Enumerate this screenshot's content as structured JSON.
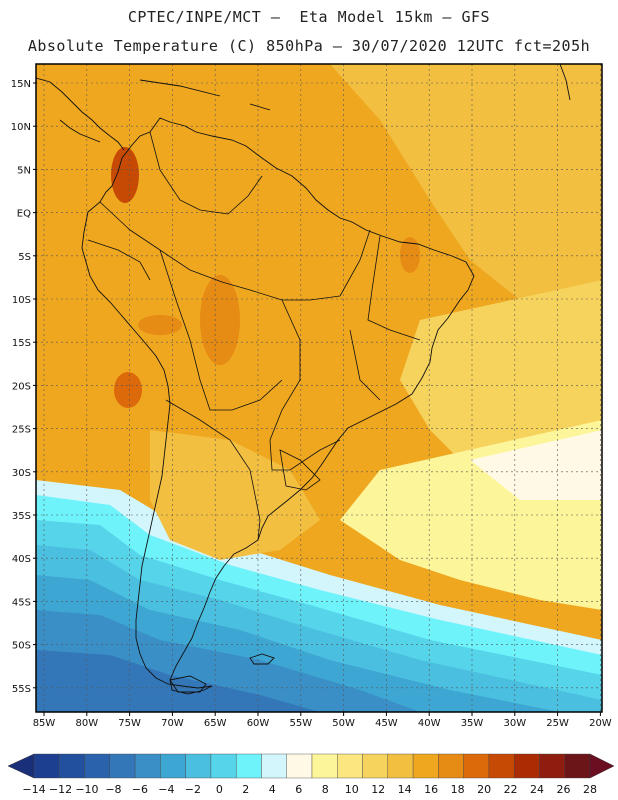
{
  "header": {
    "title_line1": "CPTEC/INPE/MCT –  Eta Model 15km – GFS",
    "title_line2": "Absolute Temperature (C) 850hPa – 30/07/2020 12UTC fct=205h"
  },
  "map": {
    "lat_labels": [
      "15N",
      "10N",
      "5N",
      "EQ",
      "5S",
      "10S",
      "15S",
      "20S",
      "25S",
      "30S",
      "35S",
      "40S",
      "45S",
      "50S",
      "55S"
    ],
    "lon_labels": [
      "85W",
      "80W",
      "75W",
      "70W",
      "65W",
      "60W",
      "55W",
      "50W",
      "45W",
      "40W",
      "35W",
      "30W",
      "25W",
      "20W"
    ],
    "region": "South America"
  },
  "colorbar": {
    "labels": [
      "-14",
      "-12",
      "-10",
      "-8",
      "-6",
      "-4",
      "-2",
      "0",
      "2",
      "4",
      "6",
      "8",
      "10",
      "12",
      "14",
      "16",
      "18",
      "20",
      "22",
      "24",
      "26",
      "28"
    ],
    "colors": [
      "#1d3f8f",
      "#23509e",
      "#2a62ac",
      "#3477b9",
      "#3a8fc6",
      "#3ea6d2",
      "#4bbfe0",
      "#56d4ea",
      "#6ef3fb",
      "#d2f6fb",
      "#fff9e6",
      "#fdf59a",
      "#fbe680",
      "#f6d35c",
      "#f3bf40",
      "#efa720",
      "#e68b14",
      "#dd6a0a",
      "#c74a04",
      "#ab2c02",
      "#8e1d10",
      "#6c1518"
    ],
    "left_arrow_color": "#1a2f7a",
    "right_arrow_color": "#6b0e22"
  },
  "styling": {
    "coast_color": "#111111",
    "grid_color": "#555555"
  }
}
